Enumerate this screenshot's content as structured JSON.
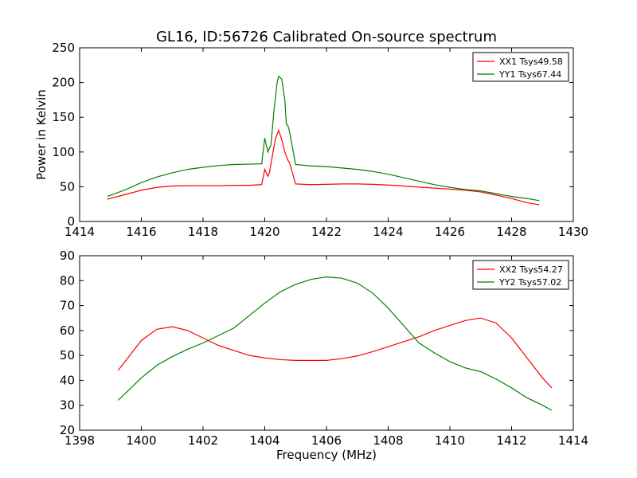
{
  "chart_data": [
    {
      "type": "line",
      "title": "GL16, ID:56726 Calibrated On-source spectrum",
      "xlabel": "",
      "ylabel": "Power in Kelvin",
      "xlim": [
        1414,
        1430
      ],
      "ylim": [
        0,
        250
      ],
      "xticks": [
        "1414",
        "1416",
        "1418",
        "1420",
        "1422",
        "1424",
        "1426",
        "1428",
        "1430"
      ],
      "yticks": [
        "0",
        "50",
        "100",
        "150",
        "200",
        "250"
      ],
      "legend_position": "top-right",
      "series": [
        {
          "name": "XX1 Tsys49.58",
          "color": "#ff0000",
          "x": [
            1414.9,
            1415.5,
            1416.0,
            1416.5,
            1417.0,
            1417.5,
            1418.0,
            1418.5,
            1419.0,
            1419.5,
            1419.9,
            1420.0,
            1420.1,
            1420.15,
            1420.25,
            1420.35,
            1420.45,
            1420.55,
            1420.65,
            1420.75,
            1420.8,
            1421.0,
            1421.5,
            1422.0,
            1422.5,
            1423.0,
            1423.5,
            1424.0,
            1424.5,
            1425.0,
            1425.5,
            1426.0,
            1426.5,
            1427.0,
            1427.5,
            1428.0,
            1428.5,
            1428.9
          ],
          "values": [
            32,
            39,
            45,
            49,
            51,
            51.5,
            51.5,
            51.5,
            52,
            52,
            53,
            75,
            65,
            70,
            95,
            120,
            131,
            118,
            100,
            88,
            85,
            54,
            53,
            53.5,
            54,
            54,
            53.5,
            52.5,
            51,
            49.5,
            48,
            46.5,
            45,
            42.5,
            38,
            33,
            27,
            24
          ]
        },
        {
          "name": "YY1 Tsys67.44",
          "color": "#008000",
          "x": [
            1414.9,
            1415.5,
            1416.0,
            1416.5,
            1417.0,
            1417.5,
            1418.0,
            1418.5,
            1419.0,
            1419.5,
            1419.9,
            1420.0,
            1420.1,
            1420.2,
            1420.3,
            1420.4,
            1420.45,
            1420.55,
            1420.65,
            1420.7,
            1420.75,
            1420.8,
            1421.0,
            1421.5,
            1422.0,
            1422.5,
            1423.0,
            1423.5,
            1424.0,
            1424.5,
            1425.0,
            1425.5,
            1426.0,
            1426.5,
            1427.0,
            1427.5,
            1428.0,
            1428.5,
            1428.9
          ],
          "values": [
            36,
            46,
            56,
            64,
            70,
            75,
            78,
            80.5,
            82,
            82.5,
            83,
            120,
            100,
            110,
            160,
            200,
            209,
            205,
            175,
            140,
            138,
            130,
            82,
            80,
            79,
            77,
            75,
            72,
            68,
            63,
            58,
            53,
            49,
            46,
            44,
            40,
            36,
            33,
            30
          ]
        }
      ]
    },
    {
      "type": "line",
      "title": "",
      "xlabel": "Frequency (MHz)",
      "ylabel": "",
      "xlim": [
        1398,
        1414
      ],
      "ylim": [
        20,
        90
      ],
      "xticks": [
        "1398",
        "1400",
        "1402",
        "1404",
        "1406",
        "1408",
        "1410",
        "1412",
        "1414"
      ],
      "yticks": [
        "20",
        "30",
        "40",
        "50",
        "60",
        "70",
        "80",
        "90"
      ],
      "legend_position": "top-right",
      "series": [
        {
          "name": "XX2 Tsys54.27",
          "color": "#ff0000",
          "x": [
            1399.25,
            1399.5,
            1400.0,
            1400.5,
            1401.0,
            1401.5,
            1402.0,
            1402.5,
            1403.0,
            1403.5,
            1404.0,
            1404.5,
            1405.0,
            1405.5,
            1406.0,
            1406.5,
            1407.0,
            1407.5,
            1408.0,
            1408.5,
            1409.0,
            1409.5,
            1410.0,
            1410.5,
            1411.0,
            1411.5,
            1412.0,
            1412.5,
            1413.0,
            1413.3
          ],
          "values": [
            44,
            48,
            56,
            60.5,
            61.5,
            60,
            57,
            54,
            52,
            50,
            49,
            48.3,
            48,
            48,
            48,
            48.7,
            49.8,
            51.5,
            53.5,
            55.5,
            57.5,
            60,
            62,
            64,
            65,
            63,
            57,
            49,
            41,
            37
          ]
        },
        {
          "name": "YY2 Tsys57.02",
          "color": "#008000",
          "x": [
            1399.25,
            1399.5,
            1400.0,
            1400.5,
            1401.0,
            1401.5,
            1402.0,
            1402.5,
            1403.0,
            1403.5,
            1404.0,
            1404.5,
            1405.0,
            1405.5,
            1406.0,
            1406.5,
            1407.0,
            1407.5,
            1408.0,
            1408.5,
            1409.0,
            1409.5,
            1410.0,
            1410.5,
            1411.0,
            1411.5,
            1412.0,
            1412.5,
            1413.0,
            1413.3
          ],
          "values": [
            32,
            35,
            41,
            46,
            49.5,
            52.5,
            55,
            58,
            61,
            66,
            71,
            75.5,
            78.5,
            80.5,
            81.5,
            81,
            79,
            75,
            69,
            62,
            55,
            51,
            47.5,
            45,
            43.5,
            40.5,
            37,
            33,
            30,
            28
          ]
        }
      ]
    }
  ]
}
